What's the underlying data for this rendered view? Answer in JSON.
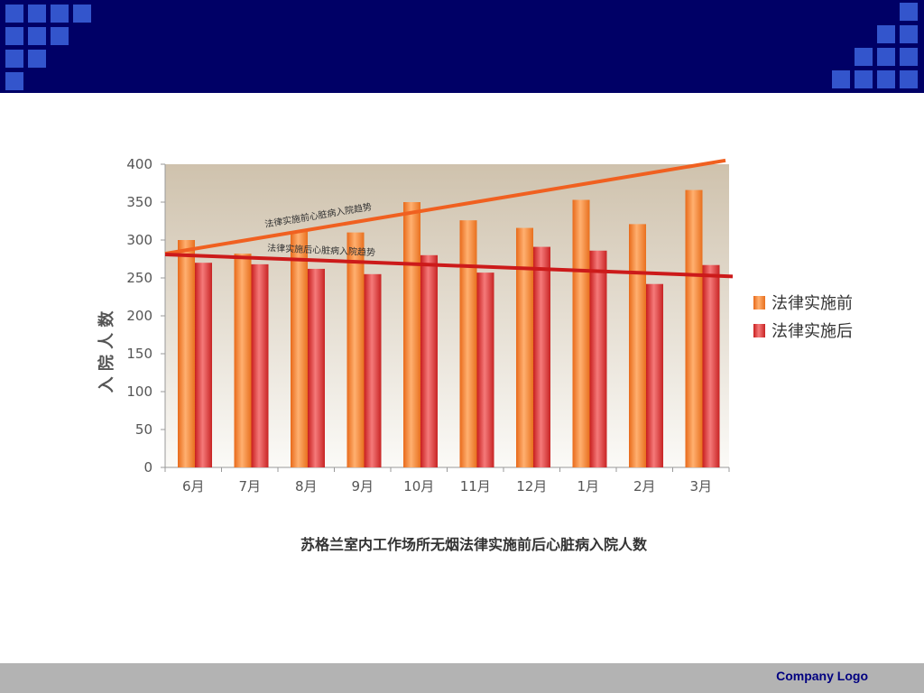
{
  "footer": {
    "logo_text": "Company  Logo"
  },
  "colors": {
    "header_band": "#000066",
    "header_squares": "#3355cc",
    "series_before": "#f08030",
    "series_after": "#dd3333",
    "trend_before": "#f06020",
    "trend_after": "#cc1a1a"
  },
  "chart_data": {
    "type": "bar",
    "title": "苏格兰室内工作场所无烟法律实施前后心脏病入院人数",
    "ylabel": "入 院 人 数",
    "ylim": [
      0,
      400
    ],
    "yticks": [
      "0",
      "50",
      "100",
      "150",
      "200",
      "250",
      "300",
      "350",
      "400"
    ],
    "categories": [
      "6月",
      "7月",
      "8月",
      "9月",
      "10月",
      "11月",
      "12月",
      "1月",
      "2月",
      "3月"
    ],
    "series": [
      {
        "name": "法律实施前",
        "values": [
          300,
          282,
          311,
          310,
          350,
          326,
          316,
          353,
          321,
          366
        ]
      },
      {
        "name": "法律实施后",
        "values": [
          270,
          268,
          262,
          255,
          280,
          257,
          291,
          286,
          242,
          267
        ]
      }
    ],
    "trendlines": [
      {
        "label": "法律实施前心脏病入院趋势",
        "start": 282,
        "end": 405
      },
      {
        "label": "法律实施后心脏病入院趋势",
        "start": 281,
        "end": 252
      }
    ],
    "legend_position": "right"
  }
}
